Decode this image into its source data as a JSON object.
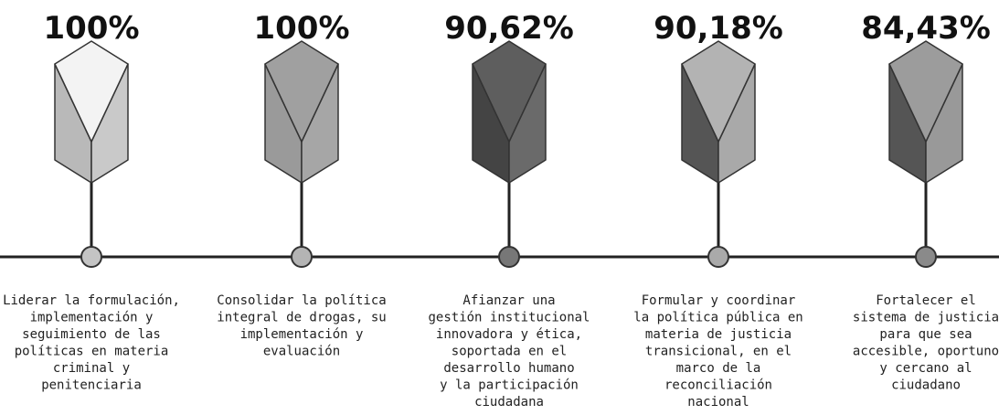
{
  "items": [
    {
      "percent": "100%",
      "lines": [
        "Liderar la formulación,",
        "implementación y",
        "seguimiento de las",
        "políticas en materia",
        "criminal y",
        "penitenciaria"
      ]
    },
    {
      "percent": "100%",
      "lines": [
        "Consolidar la política",
        "integral de drogas, su",
        "implementación y",
        "evaluación"
      ]
    },
    {
      "percent": "90,62%",
      "lines": [
        "Afianzar una",
        "gestión institucional",
        "innovadora y ética,",
        "soportada en el",
        "desarrollo humano",
        "y la participación",
        "ciudadana"
      ]
    },
    {
      "percent": "90,18%",
      "lines": [
        "Formular y coordinar",
        "la política pública en",
        "materia de justicia",
        "transicional, en el",
        "marco de la",
        "reconciliación",
        "nacional"
      ]
    },
    {
      "percent": "84,43%",
      "lines": [
        "Fortalecer el",
        "sistema de justicia",
        "para que sea",
        "accesible, oportuno",
        "y cercano al",
        "ciudadano"
      ]
    }
  ]
}
